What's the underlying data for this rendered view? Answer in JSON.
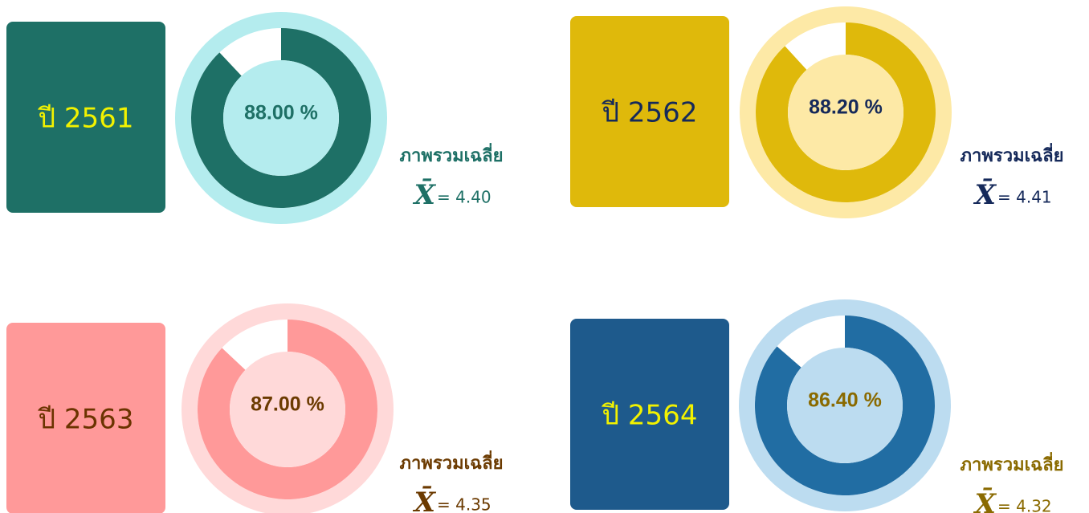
{
  "chart_data": [
    {
      "type": "donut",
      "title": "ปี 2561",
      "value": 88,
      "value_label": "88.00 %",
      "caption": "ภาพรวมเฉลี่ย",
      "mean_symbol": "X̄",
      "mean_text": "= 4.40",
      "color": "#1e7066",
      "light_color": "#b4ecee",
      "title_color": "#f2f200",
      "text_color": "#1e7066"
    },
    {
      "type": "donut",
      "title": "ปี 2562",
      "value": 88.2,
      "value_label": "88.20 %",
      "caption": "ภาพรวมเฉลี่ย",
      "mean_symbol": "X̄",
      "mean_text": "= 4.41",
      "color": "#dfb90b",
      "light_color": "#fde9a6",
      "title_color": "#15295a",
      "text_color": "#15295a"
    },
    {
      "type": "donut",
      "title": "ปี 2563",
      "value": 87,
      "value_label": "87.00 %",
      "caption": "ภาพรวมเฉลี่ย",
      "mean_symbol": "X̄",
      "mean_text": "= 4.35",
      "color": "#ff9999",
      "light_color": "#ffd9d9",
      "title_color": "#6b3300",
      "text_color": "#6b3a00"
    },
    {
      "type": "donut",
      "title": "ปี 2564",
      "value": 86.4,
      "value_label": "86.40 %",
      "caption": "ภาพรวมเฉลี่ย",
      "mean_symbol": "X̄",
      "mean_text": "= 4.32",
      "color": "#216da3",
      "light_color": "#bcdcf0",
      "title_color": "#f2f200",
      "text_color": "#8a6a00",
      "box_color": "#1e5a8c"
    }
  ]
}
